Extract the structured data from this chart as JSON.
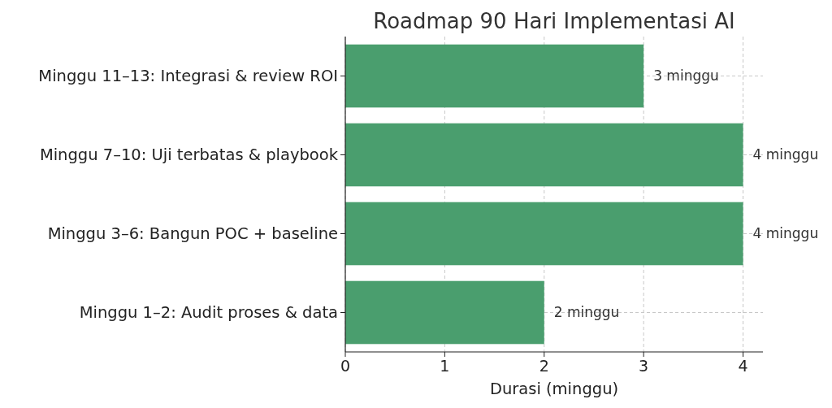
{
  "chart_data": {
    "type": "bar",
    "orientation": "horizontal",
    "title": "Roadmap 90 Hari Implementasi AI",
    "xlabel": "Durasi (minggu)",
    "categories": [
      "Minggu 11–13: Integrasi & review ROI",
      "Minggu 7–10: Uji terbatas & playbook",
      "Minggu 3–6: Bangun POC + baseline",
      "Minggu 1–2: Audit proses & data"
    ],
    "values": [
      3,
      4,
      4,
      2
    ],
    "color": "#4a9e6e",
    "value_labels": [
      "3 minggu",
      "4 minggu",
      "4 minggu",
      "2 minggu"
    ],
    "xlim": [
      0,
      4.2
    ],
    "xticks": [
      0,
      1,
      2,
      3,
      4
    ],
    "grid": true,
    "line_style": "dashed"
  }
}
